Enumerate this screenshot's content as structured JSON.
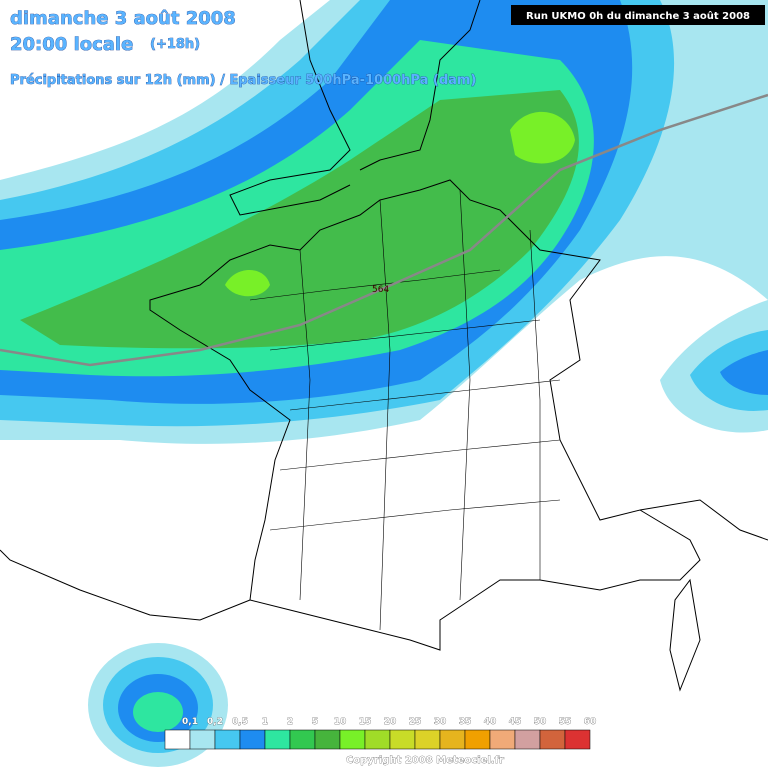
{
  "header": {
    "title": "dimanche 3 août 2008",
    "time": "20:00 locale",
    "lead": "(+18h)",
    "subtitle": "Précipitations sur 12h (mm) / Epaisseur 500hPa-1000hPa (dam)",
    "run": "Run UKMO 0h du dimanche 3 août 2008"
  },
  "map": {
    "isoline_label": "564"
  },
  "legend": {
    "labels": [
      "0,1",
      "0,2",
      "0,5",
      "1",
      "2",
      "5",
      "10",
      "15",
      "20",
      "25",
      "30",
      "35",
      "40",
      "45",
      "50",
      "55",
      "60"
    ],
    "colors": [
      "#ffffff",
      "#a8e6f0",
      "#46c8f0",
      "#1e8cf0",
      "#2ee6a0",
      "#32c850",
      "#46b43c",
      "#78f028",
      "#a0dc28",
      "#c8dc28",
      "#dcd228",
      "#e6b41e",
      "#f0a000",
      "#f0aa78",
      "#d2a0a0",
      "#d2643c",
      "#dc3232"
    ]
  },
  "footer": {
    "copyright": "Copyright 2008 Meteociel.fr"
  }
}
